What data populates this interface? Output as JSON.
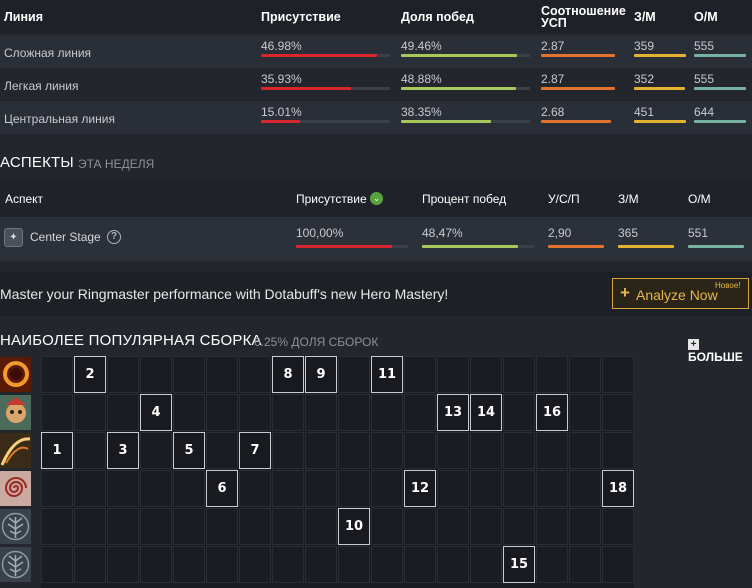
{
  "lanes": {
    "headers": {
      "lane": "Линия",
      "presence": "Присутствие",
      "winrate": "Доля побед",
      "kda_line1": "Соотношение",
      "kda_line2": "УСП",
      "gpm": "З/М",
      "xpm": "О/М"
    },
    "rows": [
      {
        "name": "Сложная линия",
        "presence": "46.98%",
        "presence_fill": 0.9,
        "winrate": "49.46%",
        "winrate_fill": 0.9,
        "kda": "2.87",
        "kda_fill": 1.0,
        "gpm": "359",
        "gpm_fill": 1.0,
        "xpm": "555",
        "xpm_fill": 1.0
      },
      {
        "name": "Легкая линия",
        "presence": "35.93%",
        "presence_fill": 0.7,
        "winrate": "48.88%",
        "winrate_fill": 0.89,
        "kda": "2.87",
        "kda_fill": 1.0,
        "gpm": "352",
        "gpm_fill": 0.98,
        "xpm": "555",
        "xpm_fill": 1.0
      },
      {
        "name": "Центральная линия",
        "presence": "15.01%",
        "presence_fill": 0.3,
        "winrate": "38.35%",
        "winrate_fill": 0.7,
        "kda": "2.68",
        "kda_fill": 0.94,
        "gpm": "451",
        "gpm_fill": 1.0,
        "xpm": "644",
        "xpm_fill": 1.0
      }
    ]
  },
  "aspects": {
    "title": "АСПЕКТЫ",
    "subtitle": "ЭТА НЕДЕЛЯ",
    "headers": {
      "aspect": "Аспект",
      "presence": "Присутствие",
      "winrate": "Процент побед",
      "kda": "У/С/П",
      "gpm": "З/М",
      "xpm": "О/М"
    },
    "row": {
      "name": "Center Stage",
      "presence": "100,00%",
      "presence_fill": 0.86,
      "winrate": "48,47%",
      "winrate_fill": 0.86,
      "kda": "2,90",
      "kda_fill": 1.0,
      "gpm": "365",
      "gpm_fill": 1.0,
      "xpm": "551",
      "xpm_fill": 1.0
    }
  },
  "banner": {
    "message": "Master your Ringmaster performance with Dotabuff's new Hero Mastery!",
    "button_label": "Analyze Now",
    "button_plus": "+",
    "badge": "Новое!"
  },
  "build": {
    "title": "НАИБОЛЕЕ ПОПУЛЯРНАЯ СБОРКА",
    "percent": "6.25%",
    "percent_suffix": "ДОЛЯ СБОРОК",
    "more": "БОЛЬШЕ",
    "more_icon": "+",
    "abilities": [
      {
        "icon": "ring-of-fire-icon",
        "levels": [
          2,
          8,
          9,
          11
        ]
      },
      {
        "icon": "ringmaster-clown-icon",
        "levels": [
          4,
          13,
          14,
          16
        ]
      },
      {
        "icon": "ringmaster-whip-icon",
        "levels": [
          1,
          3,
          5,
          7
        ]
      },
      {
        "icon": "spiral-hypnosis-icon",
        "levels": [
          6,
          12,
          18
        ]
      },
      {
        "icon": "talent-tree-icon",
        "levels": [
          10
        ]
      },
      {
        "icon": "talent-tree-icon",
        "levels": [
          15
        ]
      }
    ],
    "colors": {
      "presence": "#d8262f",
      "winrate": "#a7c95b",
      "kda": "#e2732e",
      "gpm": "#e6b030",
      "xpm": "#76b3a3"
    }
  }
}
